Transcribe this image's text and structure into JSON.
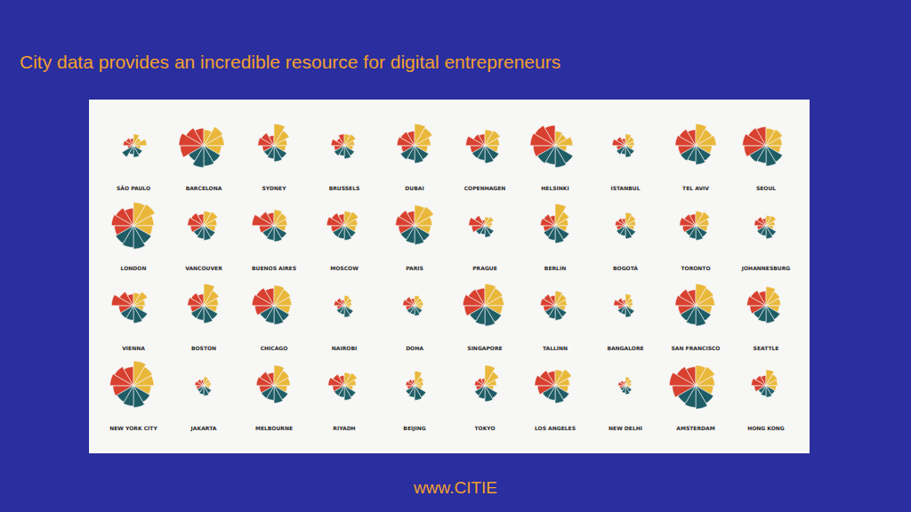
{
  "chart_data": {
    "type": "rose",
    "title": "City data provides an incredible resource for digital entrepreneurs",
    "caption": "www.CITIE",
    "tick_labels": false,
    "categories": [
      "SÃO PAULO",
      "BARCELONA",
      "SYDNEY",
      "BRUSSELS",
      "DUBAI",
      "COPENHAGEN",
      "HELSINKI",
      "ISTANBUL",
      "TEL AVIV",
      "SEOUL",
      "LONDON",
      "VANCOUVER",
      "BUENOS AIRES",
      "MOSCOW",
      "PARIS",
      "PRAGUE",
      "BERLIN",
      "BOGOTÁ",
      "TORONTO",
      "JOHANNESBURG",
      "VIENNA",
      "BOSTON",
      "CHICAGO",
      "NAIROBI",
      "DOHA",
      "SINGAPORE",
      "TALLINN",
      "BANGALORE",
      "SAN FRANCISCO",
      "SEATTLE",
      "NEW YORK CITY",
      "JAKARTA",
      "MELBOURNE",
      "RIYADH",
      "BEIJING",
      "TOKYO",
      "LOS ANGELES",
      "NEW DELHI",
      "AMSTERDAM",
      "HONG KONG"
    ],
    "series": [
      {
        "color": "#d8402f",
        "values": [
          [
            20,
            35,
            30,
            25
          ],
          [
            80,
            85,
            70,
            60
          ],
          [
            40,
            55,
            50,
            35
          ],
          [
            35,
            45,
            30,
            40
          ],
          [
            45,
            60,
            55,
            50
          ],
          [
            50,
            65,
            45,
            40
          ],
          [
            75,
            85,
            80,
            70
          ],
          [
            30,
            45,
            35,
            25
          ],
          [
            60,
            70,
            65,
            55
          ],
          [
            75,
            80,
            70,
            65
          ],
          [
            65,
            75,
            70,
            60
          ],
          [
            45,
            55,
            50,
            40
          ],
          [
            50,
            75,
            55,
            45
          ],
          [
            45,
            60,
            50,
            40
          ],
          [
            55,
            65,
            60,
            50
          ],
          [
            45,
            55,
            40,
            20
          ],
          [
            40,
            50,
            45,
            35
          ],
          [
            30,
            35,
            30,
            25
          ],
          [
            45,
            55,
            45,
            40
          ],
          [
            30,
            40,
            35,
            25
          ],
          [
            50,
            75,
            55,
            40
          ],
          [
            45,
            55,
            50,
            40
          ],
          [
            65,
            75,
            70,
            60
          ],
          [
            25,
            35,
            30,
            20
          ],
          [
            30,
            40,
            35,
            25
          ],
          [
            70,
            75,
            65,
            60
          ],
          [
            40,
            50,
            45,
            35
          ],
          [
            25,
            40,
            30,
            20
          ],
          [
            60,
            70,
            65,
            55
          ],
          [
            55,
            65,
            60,
            50
          ],
          [
            70,
            80,
            75,
            65
          ],
          [
            25,
            30,
            25,
            20
          ],
          [
            50,
            60,
            55,
            45
          ],
          [
            40,
            55,
            45,
            35
          ],
          [
            25,
            30,
            25,
            20
          ],
          [
            30,
            35,
            30,
            25
          ],
          [
            60,
            70,
            60,
            50
          ],
          [
            20,
            25,
            20,
            15
          ],
          [
            80,
            90,
            75,
            65
          ],
          [
            40,
            50,
            40,
            35
          ]
        ]
      },
      {
        "color": "#e9b83b",
        "values": [
          [
            40,
            30,
            45,
            25
          ],
          [
            55,
            75,
            70,
            60
          ],
          [
            75,
            60,
            45,
            40
          ],
          [
            40,
            45,
            35,
            30
          ],
          [
            75,
            70,
            55,
            45
          ],
          [
            55,
            60,
            50,
            45
          ],
          [
            50,
            45,
            60,
            40
          ],
          [
            40,
            35,
            30,
            25
          ],
          [
            75,
            65,
            70,
            55
          ],
          [
            60,
            65,
            55,
            50
          ],
          [
            80,
            85,
            70,
            65
          ],
          [
            50,
            55,
            45,
            40
          ],
          [
            55,
            50,
            45,
            40
          ],
          [
            50,
            55,
            45,
            40
          ],
          [
            70,
            75,
            60,
            55
          ],
          [
            30,
            35,
            25,
            20
          ],
          [
            75,
            55,
            45,
            40
          ],
          [
            45,
            40,
            35,
            30
          ],
          [
            50,
            55,
            45,
            40
          ],
          [
            35,
            40,
            30,
            25
          ],
          [
            45,
            55,
            40,
            35
          ],
          [
            75,
            60,
            50,
            45
          ],
          [
            70,
            65,
            60,
            55
          ],
          [
            35,
            30,
            25,
            20
          ],
          [
            35,
            30,
            30,
            25
          ],
          [
            75,
            70,
            65,
            60
          ],
          [
            50,
            45,
            40,
            35
          ],
          [
            40,
            30,
            25,
            20
          ],
          [
            75,
            70,
            65,
            55
          ],
          [
            65,
            55,
            50,
            45
          ],
          [
            85,
            75,
            70,
            60
          ],
          [
            30,
            25,
            25,
            20
          ],
          [
            70,
            60,
            55,
            45
          ],
          [
            45,
            50,
            40,
            30
          ],
          [
            50,
            35,
            30,
            25
          ],
          [
            70,
            55,
            40,
            30
          ],
          [
            55,
            65,
            50,
            45
          ],
          [
            30,
            25,
            20,
            15
          ],
          [
            70,
            75,
            65,
            60
          ],
          [
            55,
            45,
            40,
            35
          ]
        ]
      },
      {
        "color": "#1f5d66",
        "values": [
          [
            35,
            40,
            30,
            45
          ],
          [
            65,
            70,
            75,
            60
          ],
          [
            50,
            55,
            45,
            40
          ],
          [
            40,
            45,
            35,
            40
          ],
          [
            55,
            60,
            50,
            55
          ],
          [
            55,
            60,
            50,
            50
          ],
          [
            70,
            75,
            65,
            70
          ],
          [
            35,
            40,
            30,
            35
          ],
          [
            60,
            65,
            55,
            60
          ],
          [
            65,
            70,
            60,
            65
          ],
          [
            70,
            80,
            75,
            70
          ],
          [
            45,
            50,
            45,
            40
          ],
          [
            50,
            55,
            50,
            45
          ],
          [
            45,
            50,
            45,
            45
          ],
          [
            60,
            65,
            60,
            55
          ],
          [
            35,
            40,
            30,
            35
          ],
          [
            55,
            60,
            50,
            45
          ],
          [
            40,
            45,
            35,
            35
          ],
          [
            45,
            50,
            45,
            40
          ],
          [
            40,
            45,
            35,
            35
          ],
          [
            55,
            60,
            50,
            50
          ],
          [
            55,
            60,
            50,
            50
          ],
          [
            60,
            65,
            60,
            55
          ],
          [
            35,
            40,
            30,
            30
          ],
          [
            30,
            35,
            30,
            30
          ],
          [
            65,
            70,
            65,
            60
          ],
          [
            45,
            50,
            45,
            40
          ],
          [
            35,
            40,
            30,
            30
          ],
          [
            60,
            70,
            65,
            60
          ],
          [
            55,
            60,
            55,
            50
          ],
          [
            65,
            75,
            70,
            65
          ],
          [
            30,
            35,
            30,
            25
          ],
          [
            55,
            60,
            50,
            50
          ],
          [
            45,
            50,
            40,
            40
          ],
          [
            45,
            50,
            40,
            35
          ],
          [
            50,
            55,
            45,
            40
          ],
          [
            55,
            60,
            50,
            50
          ],
          [
            25,
            30,
            25,
            20
          ],
          [
            70,
            80,
            75,
            70
          ],
          [
            35,
            40,
            35,
            30
          ]
        ]
      }
    ]
  }
}
